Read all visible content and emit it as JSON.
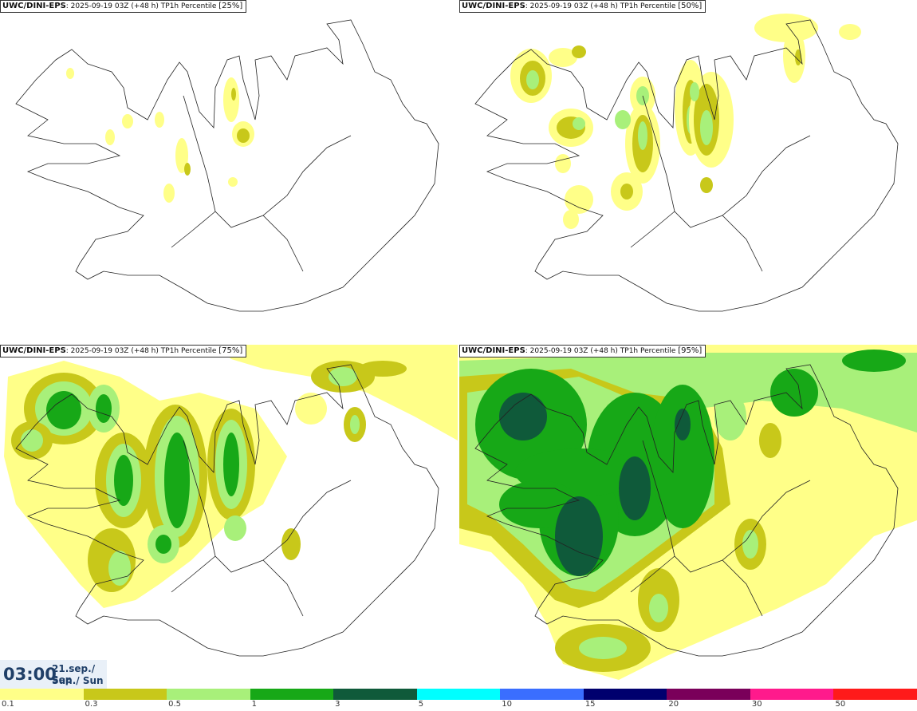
{
  "panels": [
    {
      "model": "UWC/DINI-EPS",
      "run": "2025-09-19 03Z (+48 h)",
      "field": "TP1h Percentile",
      "pct": "[25%]"
    },
    {
      "model": "UWC/DINI-EPS",
      "run": "2025-09-19 03Z (+48 h)",
      "field": "TP1h Percentile",
      "pct": "[50%]"
    },
    {
      "model": "UWC/DINI-EPS",
      "run": "2025-09-19 03Z (+48 h)",
      "field": "TP1h Percentile",
      "pct": "[75%]"
    },
    {
      "model": "UWC/DINI-EPS",
      "run": "2025-09-19 03Z (+48 h)",
      "field": "TP1h Percentile",
      "pct": "[95%]"
    }
  ],
  "time": {
    "clock": "03:00",
    "date": "21.sep./ Sep",
    "day": "Sun./ Sun"
  },
  "colorbar": {
    "colors": [
      "#ffff88",
      "#c8c81a",
      "#a8f07a",
      "#17a817",
      "#0f5a3a",
      "#00ffff",
      "#3a6eff",
      "#00006e",
      "#7a005a",
      "#ff1a8c",
      "#ff1a1a"
    ],
    "ticks": [
      "0.1",
      "0.3",
      "0.5",
      "1",
      "3",
      "5",
      "10",
      "15",
      "20",
      "30",
      "50"
    ]
  }
}
